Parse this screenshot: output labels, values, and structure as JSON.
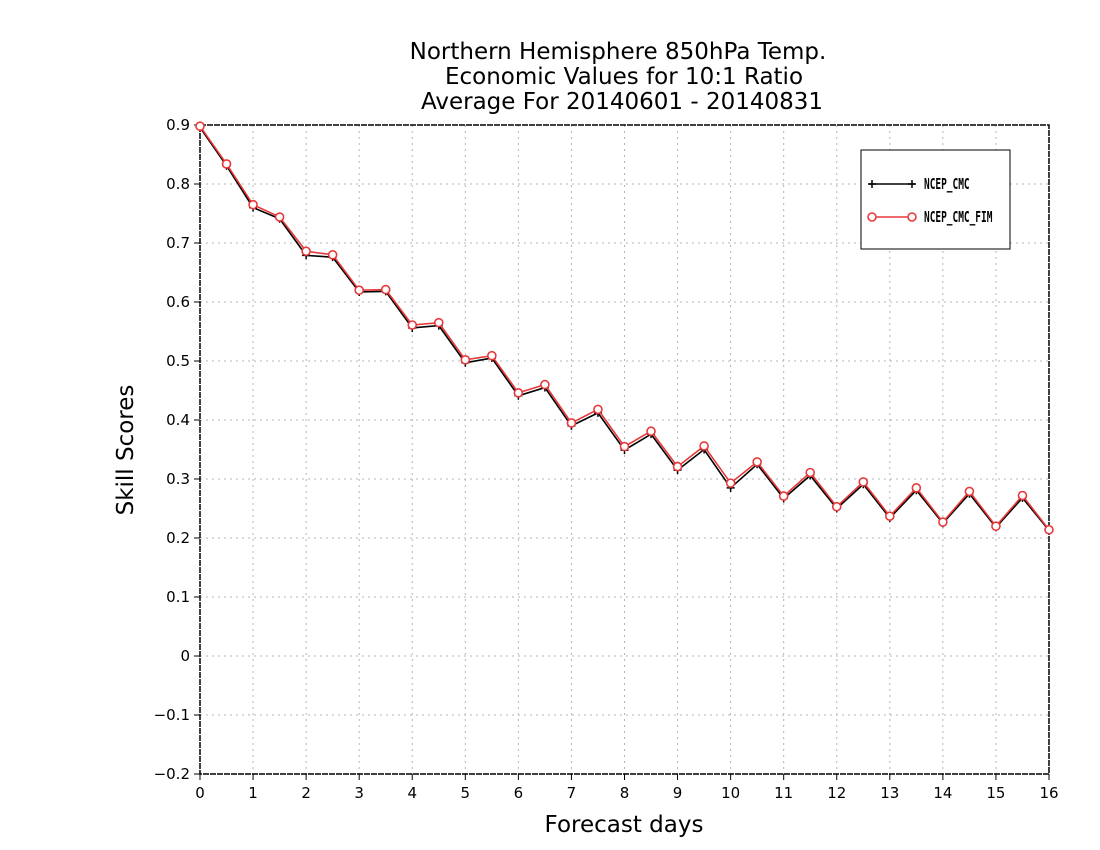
{
  "chart_data": {
    "type": "line",
    "title": [
      "Northern Hemisphere 850hPa Temp.",
      "Economic Values for 10:1 Ratio",
      "Average For 20140601 - 20140831"
    ],
    "xlabel": "Forecast days",
    "ylabel": "Skill Scores",
    "xlim": [
      0,
      16
    ],
    "ylim": [
      -0.2,
      0.9
    ],
    "x_ticks": [
      "0",
      "1",
      "2",
      "3",
      "4",
      "5",
      "6",
      "7",
      "8",
      "9",
      "10",
      "11",
      "12",
      "13",
      "14",
      "15",
      "16"
    ],
    "y_ticks": [
      "0.9",
      "0.8",
      "0.7",
      "0.6",
      "0.5",
      "0.4",
      "0.3",
      "0.2",
      "0.1",
      "0",
      "−0.1",
      "−0.2"
    ],
    "grid": true,
    "legend_position": "top-right",
    "x": [
      0,
      0.5,
      1,
      1.5,
      2,
      2.5,
      3,
      3.5,
      4,
      4.5,
      5,
      5.5,
      6,
      6.5,
      7,
      7.5,
      8,
      8.5,
      9,
      9.5,
      10,
      10.5,
      11,
      11.5,
      12,
      12.5,
      13,
      13.5,
      14,
      14.5,
      15,
      15.5,
      16
    ],
    "series": [
      {
        "name": "NCEP_CMC",
        "color": "#000000",
        "marker": "plus",
        "values": [
          0.896,
          0.831,
          0.76,
          0.741,
          0.679,
          0.676,
          0.617,
          0.618,
          0.556,
          0.56,
          0.497,
          0.505,
          0.441,
          0.455,
          0.39,
          0.412,
          0.349,
          0.376,
          0.315,
          0.35,
          0.285,
          0.325,
          0.267,
          0.306,
          0.25,
          0.291,
          0.234,
          0.281,
          0.225,
          0.275,
          0.218,
          0.268,
          0.213
        ]
      },
      {
        "name": "NCEP_CMC_FIM",
        "color": "#e8393a",
        "marker": "circle",
        "values": [
          0.898,
          0.834,
          0.765,
          0.744,
          0.686,
          0.68,
          0.62,
          0.621,
          0.561,
          0.565,
          0.502,
          0.509,
          0.446,
          0.46,
          0.395,
          0.418,
          0.355,
          0.381,
          0.321,
          0.356,
          0.293,
          0.329,
          0.271,
          0.311,
          0.253,
          0.295,
          0.237,
          0.285,
          0.227,
          0.279,
          0.22,
          0.272,
          0.214
        ]
      }
    ]
  }
}
